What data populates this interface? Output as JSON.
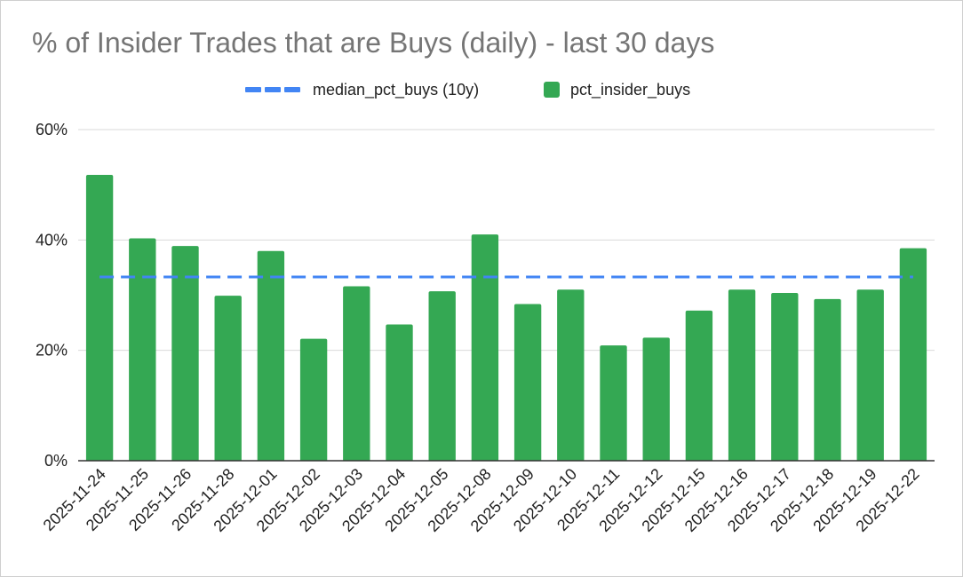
{
  "chart_data": {
    "type": "bar",
    "title": "% of Insider Trades that are Buys (daily) - last 30 days",
    "xlabel": "",
    "ylabel": "",
    "ylim": [
      0,
      0.6
    ],
    "yticks": [
      "0%",
      "20%",
      "40%",
      "60%"
    ],
    "grid": true,
    "legend_placement": "top",
    "categories": [
      "2025-11-24",
      "2025-11-25",
      "2025-11-26",
      "2025-11-28",
      "2025-12-01",
      "2025-12-02",
      "2025-12-03",
      "2025-12-04",
      "2025-12-05",
      "2025-12-08",
      "2025-12-09",
      "2025-12-10",
      "2025-12-11",
      "2025-12-12",
      "2025-12-15",
      "2025-12-16",
      "2025-12-17",
      "2025-12-18",
      "2025-12-19",
      "2025-12-22"
    ],
    "series": [
      {
        "name": "median_pct_buys (10y)",
        "kind": "line",
        "style": "dashed",
        "color": "#4285f4",
        "values": [
          0.333,
          0.333,
          0.333,
          0.333,
          0.333,
          0.333,
          0.333,
          0.333,
          0.333,
          0.333,
          0.333,
          0.333,
          0.333,
          0.333,
          0.333,
          0.333,
          0.333,
          0.333,
          0.333,
          0.333
        ]
      },
      {
        "name": "pct_insider_buys",
        "kind": "bar",
        "color": "#34a853",
        "values": [
          0.518,
          0.403,
          0.389,
          0.299,
          0.38,
          0.221,
          0.316,
          0.247,
          0.307,
          0.41,
          0.284,
          0.31,
          0.209,
          0.223,
          0.272,
          0.31,
          0.304,
          0.293,
          0.31,
          0.385
        ]
      }
    ]
  }
}
